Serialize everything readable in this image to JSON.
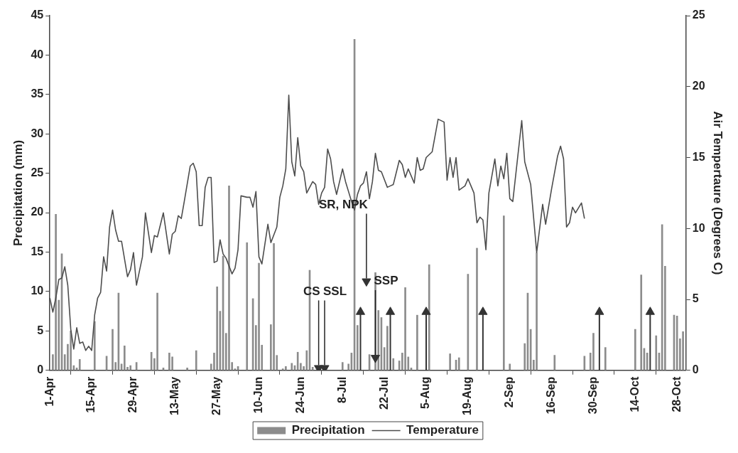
{
  "chart_data": {
    "type": "bar",
    "ylabel": "Precipitation (mm)",
    "y2label": "Air Tempertaure (Degrees C)",
    "legend": "bottom",
    "xlim": [
      "--04-01",
      "--10-31"
    ],
    "xticks": [
      {
        "value": "--04-01",
        "label": "1-Apr"
      },
      {
        "value": "--04-15",
        "label": "15-Apr"
      },
      {
        "value": "--04-29",
        "label": "29-Apr"
      },
      {
        "value": "--05-13",
        "label": "13-May"
      },
      {
        "value": "--05-27",
        "label": "27-May"
      },
      {
        "value": "--06-10",
        "label": "10-Jun"
      },
      {
        "value": "--06-24",
        "label": "24-Jun"
      },
      {
        "value": "--07-08",
        "label": "8-Jul"
      },
      {
        "value": "--07-22",
        "label": "22-Jul"
      },
      {
        "value": "--08-05",
        "label": "5-Aug"
      },
      {
        "value": "--08-19",
        "label": "19-Aug"
      },
      {
        "value": "--09-02",
        "label": "2-Sep"
      },
      {
        "value": "--09-16",
        "label": "16-Sep"
      },
      {
        "value": "--09-30",
        "label": "30-Sep"
      },
      {
        "value": "--10-14",
        "label": "14-Oct"
      },
      {
        "value": "--10-28",
        "label": "28-Oct"
      }
    ],
    "ylim": [
      0,
      45
    ],
    "yticks": [
      0,
      5,
      10,
      15,
      20,
      25,
      30,
      35,
      40,
      45
    ],
    "y2lim": [
      0,
      25
    ],
    "y2ticks": [
      0,
      5,
      10,
      15,
      20,
      25
    ],
    "annotations": [
      {
        "text": "CS",
        "x": "--06-30",
        "y": 0.3
      },
      {
        "text": "SSL",
        "x": "--07-02",
        "y": 0.3
      },
      {
        "text": "SR, NPK",
        "x": "--07-16",
        "y": 11.3
      },
      {
        "text": "SSP",
        "x": "--07-19",
        "y": 1.6
      }
    ],
    "series": [
      {
        "name": "Precipitation",
        "color": "#8c8c8c",
        "x": [
          "--04-02",
          "--04-03",
          "--04-04",
          "--04-05",
          "--04-06",
          "--04-07",
          "--04-08",
          "--04-09",
          "--04-10",
          "--04-11",
          "--04-16",
          "--04-20",
          "--04-22",
          "--04-23",
          "--04-24",
          "--04-25",
          "--04-26",
          "--04-27",
          "--04-28",
          "--04-30",
          "--05-05",
          "--05-06",
          "--05-07",
          "--05-09",
          "--05-11",
          "--05-12",
          "--05-17",
          "--05-20",
          "--05-25",
          "--05-26",
          "--05-27",
          "--05-28",
          "--05-29",
          "--05-30",
          "--05-31",
          "--06-01",
          "--06-02",
          "--06-03",
          "--06-06",
          "--06-08",
          "--06-09",
          "--06-10",
          "--06-11",
          "--06-14",
          "--06-15",
          "--06-16",
          "--06-18",
          "--06-19",
          "--06-21",
          "--06-22",
          "--06-23",
          "--06-24",
          "--06-25",
          "--06-26",
          "--06-27",
          "--06-28",
          "--06-29",
          "--07-08",
          "--07-10",
          "--07-11",
          "--07-12",
          "--07-13",
          "--07-17",
          "--07-19",
          "--07-20",
          "--07-21",
          "--07-22",
          "--07-23",
          "--07-25",
          "--07-27",
          "--07-28",
          "--07-29",
          "--07-30",
          "--07-31",
          "--08-02",
          "--08-06",
          "--08-13",
          "--08-15",
          "--08-16",
          "--08-19",
          "--08-22",
          "--08-31",
          "--09-02",
          "--09-07",
          "--09-08",
          "--09-09",
          "--09-10",
          "--09-11",
          "--09-17",
          "--09-27",
          "--09-29",
          "--09-30",
          "--10-04",
          "--10-14",
          "--10-16",
          "--10-17",
          "--10-18",
          "--10-21",
          "--10-22",
          "--10-23",
          "--10-24",
          "--10-27",
          "--10-28",
          "--10-29",
          "--10-30"
        ],
        "values": [
          2.0,
          19.8,
          8.9,
          14.8,
          2.0,
          3.3,
          5.0,
          0.6,
          0.3,
          1.4,
          6.2,
          1.8,
          5.2,
          1.0,
          9.8,
          0.8,
          3.1,
          0.4,
          0.6,
          1.0,
          2.3,
          1.5,
          9.8,
          0.3,
          2.2,
          1.7,
          0.3,
          2.5,
          0.8,
          2.2,
          10.6,
          7.5,
          14.5,
          4.7,
          23.4,
          1.0,
          0.2,
          0.5,
          16.2,
          9.1,
          5.7,
          13.6,
          3.2,
          5.8,
          16.1,
          1.9,
          0.2,
          0.5,
          0.9,
          0.6,
          2.3,
          0.9,
          0.5,
          2.5,
          12.7,
          0.4,
          null,
          1.0,
          0.8,
          2.2,
          42,
          5.7,
          2.0,
          12.4,
          7.6,
          6.7,
          2.9,
          5.6,
          1.5,
          1.2,
          2.2,
          10.5,
          1.7,
          0.3,
          7.0,
          13.4,
          2.1,
          1.3,
          1.6,
          12.2,
          15.5,
          19.6,
          0.8,
          3.4,
          9.8,
          5.2,
          1.3,
          14.9,
          1.9,
          1.8,
          2.2,
          4.7,
          2.9,
          5.2,
          12.1,
          2.8,
          2.2,
          4.4,
          2.2,
          18.5,
          13.2,
          7.0,
          6.9,
          4.0,
          4.9
        ]
      },
      {
        "name": "Temperature",
        "type": "line",
        "axis": "y2",
        "color": "#4d4d4d",
        "x": [
          "--04-01",
          "--04-02",
          "--04-03",
          "--04-04",
          "--04-05",
          "--04-06",
          "--04-07",
          "--04-08",
          "--04-09",
          "--04-10",
          "--04-11",
          "--04-12",
          "--04-13",
          "--04-14",
          "--04-15",
          "--04-16",
          "--04-17",
          "--04-18",
          "--04-19",
          "--04-20",
          "--04-21",
          "--04-22",
          "--04-23",
          "--04-24",
          "--04-25",
          "--04-27",
          "--04-28",
          "--04-29",
          "--04-30",
          "--05-02",
          "--05-03",
          "--05-05",
          "--05-06",
          "--05-07",
          "--05-09",
          "--05-11",
          "--05-12",
          "--05-13",
          "--05-14",
          "--05-15",
          "--05-16",
          "--05-18",
          "--05-19",
          "--05-20",
          "--05-21",
          "--05-22",
          "--05-23",
          "--05-24",
          "--05-25",
          "--05-26",
          "--05-27",
          "--05-28",
          "--05-29",
          "--05-30",
          "--06-01",
          "--06-02",
          "--06-03",
          "--06-04",
          "--06-06",
          "--06-07",
          "--06-08",
          "--06-09",
          "--06-10",
          "--06-11",
          "--06-13",
          "--06-14",
          "--06-16",
          "--06-17",
          "--06-18",
          "--06-19",
          "--06-20",
          "--06-21",
          "--06-22",
          "--06-23",
          "--06-24",
          "--06-25",
          "--06-26",
          "--06-27",
          "--06-28",
          "--06-29",
          "--06-30",
          "--07-01",
          "--07-02",
          "--07-03",
          "--07-04",
          "--07-05",
          "--07-06",
          "--07-08",
          "--07-09",
          "--07-10",
          "--07-11",
          "--07-12",
          "--07-13",
          "--07-14",
          "--07-15",
          "--07-16",
          "--07-17",
          "--07-18",
          "--07-19",
          "--07-20",
          "--07-21",
          "--07-23",
          "--07-24",
          "--07-25",
          "--07-27",
          "--07-28",
          "--07-29",
          "--07-30",
          "--08-01",
          "--08-02",
          "--08-03",
          "--08-04",
          "--08-05",
          "--08-07",
          "--08-09",
          "--08-11",
          "--08-12",
          "--08-13",
          "--08-14",
          "--08-15",
          "--08-16",
          "--08-18",
          "--08-19",
          "--08-20",
          "--08-21",
          "--08-22",
          "--08-23",
          "--08-24",
          "--08-25",
          "--08-26",
          "--08-28",
          "--08-29",
          "--08-30",
          "--08-31",
          "--09-01",
          "--09-02",
          "--09-03",
          "--09-06",
          "--09-07",
          "--09-09",
          "--09-11",
          "--09-13",
          "--09-14",
          "--09-16",
          "--09-18",
          "--09-19",
          "--09-20",
          "--09-21",
          "--09-22",
          "--09-23",
          "--09-24",
          "--09-26",
          "--09-27"
        ],
        "values": [
          5.1,
          4.1,
          5.1,
          6.4,
          6.5,
          7.3,
          6.0,
          2.9,
          1.5,
          3.0,
          1.9,
          2.0,
          1.4,
          1.7,
          1.4,
          3.9,
          5.1,
          5.5,
          8.0,
          7.0,
          10.1,
          11.3,
          9.9,
          9.1,
          9.1,
          6.6,
          7.1,
          8.3,
          6.0,
          8.0,
          11.1,
          8.3,
          9.5,
          9.4,
          11.1,
          8.2,
          9.6,
          9.8,
          10.9,
          10.7,
          11.9,
          14.4,
          14.6,
          14.0,
          10.2,
          10.2,
          12.9,
          13.6,
          13.6,
          7.6,
          7.7,
          9.2,
          8.2,
          7.9,
          6.8,
          7.2,
          8.5,
          12.3,
          12.2,
          12.2,
          11.5,
          12.6,
          8.0,
          7.5,
          10.3,
          9.0,
          10.1,
          12.2,
          13.0,
          14.2,
          19.4,
          14.7,
          13.7,
          16.4,
          14.4,
          14.0,
          12.5,
          12.9,
          13.3,
          13.1,
          11.7,
          12.5,
          12.9,
          15.6,
          14.9,
          13.3,
          12.4,
          14.2,
          13.3,
          12.6,
          11.9,
          11.3,
          12.4,
          13.0,
          13.2,
          14.0,
          12.1,
          13.3,
          15.3,
          14.1,
          14.0,
          12.9,
          13.0,
          13.1,
          14.8,
          14.5,
          13.6,
          14.2,
          13.2,
          15.0,
          14.1,
          14.2,
          15.0,
          15.4,
          17.7,
          17.5,
          13.4,
          15.0,
          13.6,
          15.0,
          12.7,
          13.0,
          13.5,
          13.0,
          12.5,
          10.4,
          10.8,
          10.6,
          8.5,
          12.5,
          14.9,
          13.0,
          14.4,
          13.5,
          15.3,
          12.1,
          11.9,
          17.6,
          14.7,
          13.1,
          8.3,
          11.7,
          10.3,
          12.8,
          15.1,
          15.8,
          14.9,
          10.1,
          10.4,
          11.5,
          11.1,
          11.8,
          10.7
        ]
      },
      {
        "type": "scatter",
        "marker": "triangle",
        "color": "#333333",
        "x": [
          "--07-14",
          "--07-24",
          "--08-05",
          "--08-24",
          "--10-02",
          "--10-19",
          "--06-30",
          "--07-02",
          "--07-16",
          "--07-19"
        ],
        "values": [
          7.4,
          7.4,
          7.4,
          7.4,
          7.4,
          7.4,
          0.3,
          0.3,
          11.3,
          1.6
        ],
        "errors": [
          [
            0,
            7.4
          ],
          [
            0,
            7.4
          ],
          [
            0,
            7.4
          ],
          [
            0,
            7.4
          ],
          [
            0,
            7.4
          ],
          [
            0,
            7.4
          ],
          null,
          null,
          null,
          null
        ]
      }
    ]
  }
}
